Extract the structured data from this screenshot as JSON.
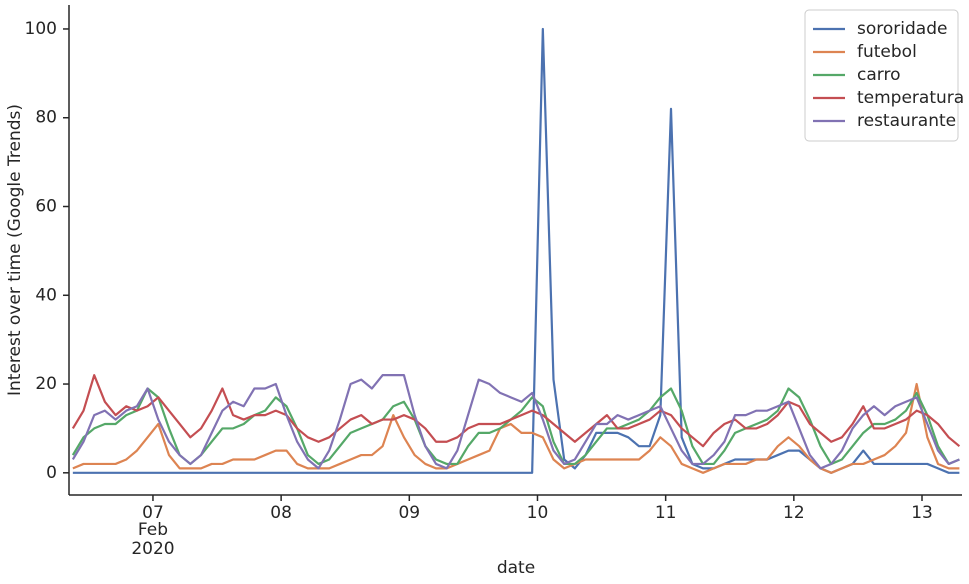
{
  "chart_data": {
    "type": "line",
    "x_label": "date",
    "y_label": "Interest over time (Google Trends)",
    "x_sublabels": [
      "Feb",
      "2020"
    ],
    "x": [
      6.375,
      6.4583,
      6.5417,
      6.625,
      6.7083,
      6.7917,
      6.875,
      6.9583,
      7.0417,
      7.125,
      7.2083,
      7.2917,
      7.375,
      7.4583,
      7.5417,
      7.625,
      7.7083,
      7.7917,
      7.875,
      7.9583,
      8.0417,
      8.125,
      8.2083,
      8.2917,
      8.375,
      8.4583,
      8.5417,
      8.625,
      8.7083,
      8.7917,
      8.875,
      8.9583,
      9.0417,
      9.125,
      9.2083,
      9.2917,
      9.375,
      9.4583,
      9.5417,
      9.625,
      9.7083,
      9.7917,
      9.875,
      9.9583,
      10.0417,
      10.125,
      10.2083,
      10.2917,
      10.375,
      10.4583,
      10.5417,
      10.625,
      10.7083,
      10.7917,
      10.875,
      10.9583,
      11.0417,
      11.125,
      11.2083,
      11.2917,
      11.375,
      11.4583,
      11.5417,
      11.625,
      11.7083,
      11.7917,
      11.875,
      11.9583,
      12.0417,
      12.125,
      12.2083,
      12.2917,
      12.375,
      12.4583,
      12.5417,
      12.625,
      12.7083,
      12.7917,
      12.875,
      12.9583,
      13.0417,
      13.125,
      13.2083,
      13.2917
    ],
    "series": [
      {
        "name": "sororidade",
        "color": "#4c72b0",
        "values": [
          0,
          0,
          0,
          0,
          0,
          0,
          0,
          0,
          0,
          0,
          0,
          0,
          0,
          0,
          0,
          0,
          0,
          0,
          0,
          0,
          0,
          0,
          0,
          0,
          0,
          0,
          0,
          0,
          0,
          0,
          0,
          0,
          0,
          0,
          0,
          0,
          0,
          0,
          0,
          0,
          0,
          0,
          0,
          0,
          100,
          21,
          3,
          1,
          4,
          9,
          9,
          9,
          8,
          6,
          6,
          13,
          82,
          8,
          2,
          1,
          1,
          2,
          3,
          3,
          3,
          3,
          4,
          5,
          5,
          3,
          1,
          0,
          1,
          2,
          5,
          2,
          2,
          2,
          2,
          2,
          2,
          1,
          0,
          0
        ]
      },
      {
        "name": "futebol",
        "color": "#dd8452",
        "values": [
          1,
          2,
          2,
          2,
          2,
          3,
          5,
          8,
          11,
          4,
          1,
          1,
          1,
          2,
          2,
          3,
          3,
          3,
          4,
          5,
          5,
          2,
          1,
          1,
          1,
          2,
          3,
          4,
          4,
          6,
          13,
          8,
          4,
          2,
          1,
          1,
          2,
          3,
          4,
          5,
          10,
          11,
          9,
          9,
          8,
          3,
          1,
          2,
          3,
          3,
          3,
          3,
          3,
          3,
          5,
          8,
          6,
          2,
          1,
          0,
          1,
          2,
          2,
          2,
          3,
          3,
          6,
          8,
          6,
          3,
          1,
          0,
          1,
          2,
          2,
          3,
          4,
          6,
          9,
          20,
          8,
          2,
          1,
          1
        ]
      },
      {
        "name": "carro",
        "color": "#55a868",
        "values": [
          4,
          8,
          10,
          11,
          11,
          13,
          14,
          19,
          17,
          10,
          4,
          2,
          4,
          7,
          10,
          10,
          11,
          13,
          14,
          17,
          15,
          10,
          4,
          2,
          3,
          6,
          9,
          10,
          11,
          12,
          15,
          16,
          12,
          6,
          3,
          2,
          2,
          6,
          9,
          9,
          10,
          12,
          14,
          17,
          15,
          7,
          2,
          2,
          4,
          7,
          10,
          10,
          11,
          12,
          14,
          17,
          19,
          14,
          6,
          2,
          2,
          5,
          9,
          10,
          11,
          12,
          14,
          19,
          17,
          12,
          6,
          2,
          3,
          6,
          9,
          11,
          11,
          12,
          14,
          18,
          13,
          6,
          2,
          3
        ]
      },
      {
        "name": "temperatura",
        "color": "#c44e52",
        "values": [
          10,
          14,
          22,
          16,
          13,
          15,
          14,
          15,
          17,
          14,
          11,
          8,
          10,
          14,
          19,
          13,
          12,
          13,
          13,
          14,
          13,
          10,
          8,
          7,
          8,
          10,
          12,
          13,
          11,
          12,
          12,
          13,
          12,
          10,
          7,
          7,
          8,
          10,
          11,
          11,
          11,
          12,
          13,
          14,
          13,
          11,
          9,
          7,
          9,
          11,
          13,
          10,
          10,
          11,
          12,
          14,
          13,
          10,
          8,
          6,
          9,
          11,
          12,
          10,
          10,
          11,
          13,
          16,
          15,
          11,
          9,
          7,
          8,
          11,
          15,
          10,
          10,
          11,
          12,
          14,
          13,
          11,
          8,
          6
        ]
      },
      {
        "name": "restaurante",
        "color": "#8172b3",
        "values": [
          3,
          7,
          13,
          14,
          12,
          14,
          15,
          19,
          12,
          7,
          4,
          2,
          4,
          9,
          14,
          16,
          15,
          19,
          19,
          20,
          13,
          7,
          3,
          1,
          5,
          12,
          20,
          21,
          19,
          22,
          22,
          22,
          13,
          6,
          2,
          1,
          5,
          13,
          21,
          20,
          18,
          17,
          16,
          18,
          12,
          5,
          2,
          3,
          7,
          11,
          11,
          13,
          12,
          13,
          14,
          15,
          10,
          5,
          2,
          2,
          4,
          7,
          13,
          13,
          14,
          14,
          15,
          16,
          10,
          4,
          1,
          2,
          5,
          10,
          13,
          15,
          13,
          15,
          16,
          17,
          11,
          5,
          2,
          3
        ]
      }
    ],
    "xlim": [
      6.345,
      13.312
    ],
    "xticks": [
      {
        "value": 7,
        "label": "07"
      },
      {
        "value": 8,
        "label": "08"
      },
      {
        "value": 9,
        "label": "09"
      },
      {
        "value": 10,
        "label": "10"
      },
      {
        "value": 11,
        "label": "11"
      },
      {
        "value": 12,
        "label": "12"
      },
      {
        "value": 13,
        "label": "13"
      }
    ],
    "ylim": [
      -5,
      105.4
    ],
    "yticks": [
      0,
      20,
      40,
      60,
      80,
      100
    ],
    "grid": false,
    "legend": "upper right"
  }
}
